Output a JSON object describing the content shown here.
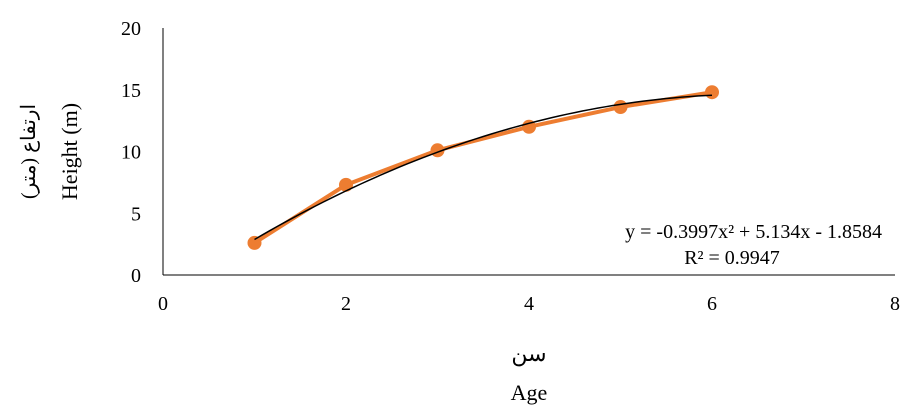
{
  "chart_data": {
    "type": "scatter",
    "xlabel_lines": [
      "سن",
      "Age"
    ],
    "ylabel_lines": [
      "ارتفاع (متر)",
      "Height (m)"
    ],
    "xlim": [
      0,
      8
    ],
    "ylim": [
      0,
      20
    ],
    "x_ticks": [
      0,
      2,
      4,
      6,
      8
    ],
    "y_ticks": [
      0,
      5,
      10,
      15,
      20
    ],
    "x_tick_labels": [
      "0",
      "2",
      "4",
      "6",
      "8"
    ],
    "y_tick_labels": [
      "0",
      "5",
      "10",
      "15",
      "20"
    ],
    "grid": false,
    "legend": "none",
    "series": [
      {
        "x": [
          1,
          2,
          3,
          4,
          5,
          6
        ],
        "y": [
          2.6,
          7.3,
          10.1,
          12.0,
          13.6,
          14.8
        ],
        "color": "#ED7D31",
        "style": "line-with-markers"
      }
    ],
    "trendline": {
      "type": "polynomial",
      "order": 2,
      "coefficients": [
        -0.3997,
        5.134,
        -1.8584
      ],
      "x_range": [
        1,
        6
      ],
      "color": "#000000",
      "equation_label": "y = -0.3997x² + 5.134x - 1.8584",
      "r2_label": "R² = 0.9947"
    }
  }
}
